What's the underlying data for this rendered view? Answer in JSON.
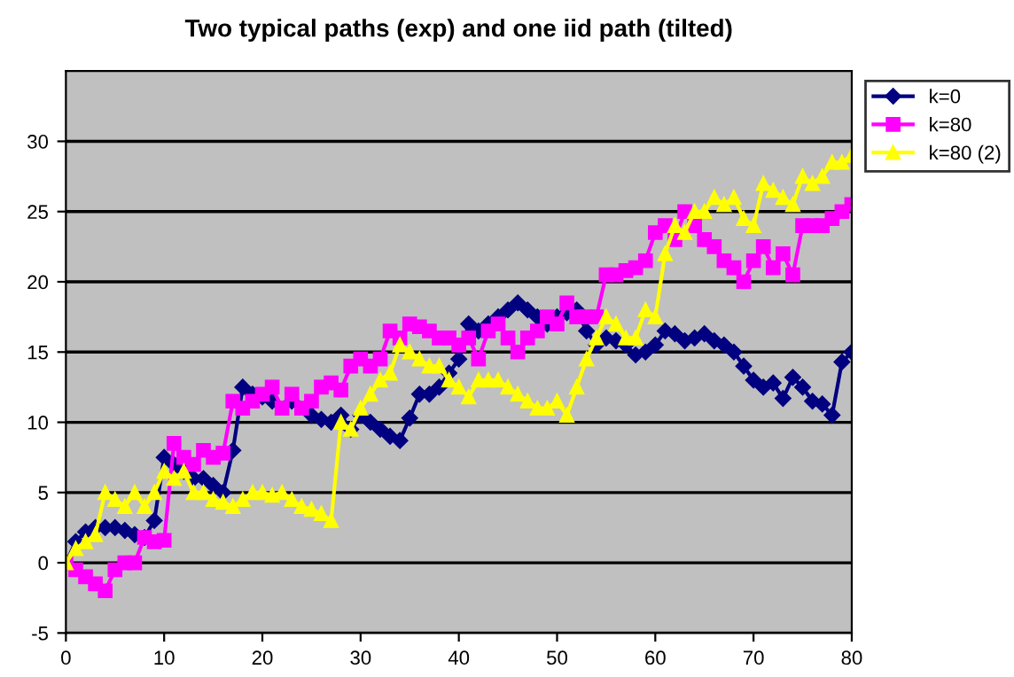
{
  "chart_data": {
    "type": "line",
    "title": "Two typical paths (exp) and one iid path (tilted)",
    "x": [
      0,
      1,
      2,
      3,
      4,
      5,
      6,
      7,
      8,
      9,
      10,
      11,
      12,
      13,
      14,
      15,
      16,
      17,
      18,
      19,
      20,
      21,
      22,
      23,
      24,
      25,
      26,
      27,
      28,
      29,
      30,
      31,
      32,
      33,
      34,
      35,
      36,
      37,
      38,
      39,
      40,
      41,
      42,
      43,
      44,
      45,
      46,
      47,
      48,
      49,
      50,
      51,
      52,
      53,
      54,
      55,
      56,
      57,
      58,
      59,
      60,
      61,
      62,
      63,
      64,
      65,
      66,
      67,
      68,
      69,
      70,
      71,
      72,
      73,
      74,
      75,
      76,
      77,
      78,
      79,
      80
    ],
    "series": [
      {
        "name": "k=0",
        "color": "#000080",
        "marker": "diamond",
        "values": [
          0,
          1.5,
          2.2,
          2.5,
          2.5,
          2.5,
          2.3,
          2,
          1.8,
          3,
          7.5,
          7,
          6.5,
          6,
          6,
          5.5,
          5,
          8,
          12.5,
          12,
          11.8,
          11.5,
          null,
          11.5,
          null,
          10.5,
          10.2,
          10,
          10.5,
          9.5,
          10.5,
          10,
          9.5,
          9,
          8.7,
          10.3,
          12,
          12,
          12.5,
          13.5,
          14.5,
          17,
          16.5,
          17,
          17.5,
          18,
          18.5,
          18,
          17.5,
          17,
          17.5,
          17.8,
          18,
          16.5,
          15.5,
          16,
          15.8,
          15.5,
          14.8,
          15,
          15.5,
          16.5,
          16.3,
          15.8,
          16,
          16.3,
          15.8,
          15.5,
          15,
          14,
          13,
          12.5,
          12.8,
          11.7,
          13.2,
          12.5,
          11.5,
          11.3,
          10.5,
          14.3,
          15
        ]
      },
      {
        "name": "k=80",
        "color": "#ff00ff",
        "marker": "square",
        "values": [
          0,
          -0.5,
          -1,
          -1.5,
          -2,
          -0.5,
          0,
          0,
          1.8,
          1.5,
          1.6,
          8.5,
          7.5,
          7,
          8,
          7.5,
          7.8,
          11.5,
          11,
          11.5,
          12,
          12.5,
          11,
          12,
          11,
          11.5,
          12.5,
          12.8,
          12.3,
          14,
          14.5,
          14,
          14.5,
          16.5,
          16,
          17,
          16.8,
          16.5,
          16,
          16,
          15.5,
          16,
          14.5,
          16.5,
          17,
          16,
          15,
          16,
          16.5,
          17.5,
          17,
          18.5,
          17.5,
          17.5,
          17.5,
          20.5,
          20.5,
          20.8,
          21,
          21.5,
          23.5,
          24,
          23,
          25,
          24,
          23,
          22.5,
          21.5,
          21,
          20,
          21.5,
          22.5,
          21,
          22,
          20.5,
          24,
          24,
          24,
          24.5,
          25,
          25.5
        ]
      },
      {
        "name": "k=80 (2)",
        "color": "#ffff00",
        "marker": "triangle",
        "values": [
          0,
          1,
          1.5,
          2,
          5,
          4.5,
          4,
          5,
          4,
          5,
          6.5,
          6,
          6.5,
          5,
          5,
          4.5,
          4.3,
          4,
          4.5,
          5,
          5,
          4.8,
          5,
          4.5,
          4,
          3.8,
          3.5,
          3,
          10,
          9.5,
          11,
          12,
          13,
          13.5,
          15.5,
          15,
          14.5,
          14,
          14,
          13,
          12.5,
          11.8,
          13,
          13,
          13,
          12.5,
          12,
          11.5,
          11,
          11,
          11.5,
          10.5,
          12.5,
          14.5,
          16,
          17.5,
          17,
          16,
          16,
          18,
          17.5,
          22,
          24,
          23.5,
          25,
          25,
          26,
          25.5,
          26,
          24.5,
          24,
          27,
          26.5,
          26,
          25.5,
          27.5,
          27,
          27.5,
          28.5,
          28.5,
          29
        ]
      }
    ],
    "xlim": [
      0,
      80
    ],
    "xticks": [
      0,
      10,
      20,
      30,
      40,
      50,
      60,
      70,
      80
    ],
    "ylim": [
      -5,
      35
    ],
    "yticks": [
      -5,
      0,
      5,
      10,
      15,
      20,
      25,
      30
    ],
    "grid": "y",
    "legend": "top right",
    "line_style": "solid"
  }
}
